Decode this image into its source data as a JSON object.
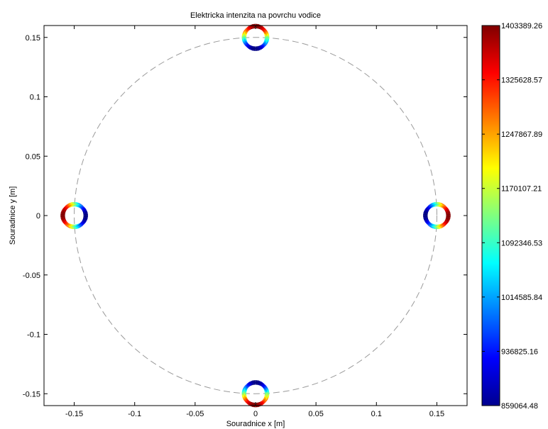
{
  "chart_data": {
    "type": "scatter",
    "title": "Elektricka intenzita na povrchu vodice",
    "xlabel": "Souradnice x [m]",
    "ylabel": "Souradnice y [m]",
    "xlim": [
      -0.175,
      0.175
    ],
    "ylim": [
      -0.16,
      0.16
    ],
    "xticks": [
      -0.15,
      -0.1,
      -0.05,
      0,
      0.05,
      0.1,
      0.15
    ],
    "xtick_labels": [
      "-0.15",
      "-0.1",
      "-0.05",
      "0",
      "0.05",
      "0.1",
      "0.15"
    ],
    "yticks": [
      -0.15,
      -0.1,
      -0.05,
      0,
      0.05,
      0.1,
      0.15
    ],
    "ytick_labels": [
      "-0.15",
      "-0.1",
      "-0.05",
      "0",
      "0.05",
      "0.1",
      "0.15"
    ],
    "grid": false,
    "reference_circle": {
      "center": [
        0,
        0
      ],
      "radius": 0.15,
      "style": "dashed",
      "color": "#9a9a9a"
    },
    "conductors": [
      {
        "name": "top",
        "center": [
          0,
          0.15
        ],
        "radius": 0.0095,
        "outward_angle_deg": 90
      },
      {
        "name": "left",
        "center": [
          -0.15,
          0
        ],
        "radius": 0.0095,
        "outward_angle_deg": 180
      },
      {
        "name": "right",
        "center": [
          0.15,
          0
        ],
        "radius": 0.0095,
        "outward_angle_deg": 0
      },
      {
        "name": "bottom",
        "center": [
          0,
          -0.15
        ],
        "radius": 0.0095,
        "outward_angle_deg": 270
      }
    ],
    "value_range": [
      859064.48,
      1403389.26
    ],
    "colormap": "jet",
    "colorbar": {
      "ticks": [
        1403389.26,
        1325628.57,
        1247867.89,
        1170107.21,
        1092346.53,
        1014585.84,
        936825.16,
        859064.48
      ],
      "tick_labels": [
        "1403389.26",
        "1325628.57",
        "1247867.89",
        "1170107.21",
        "1092346.53",
        "1014585.84",
        "936825.16",
        "859064.48"
      ]
    }
  }
}
